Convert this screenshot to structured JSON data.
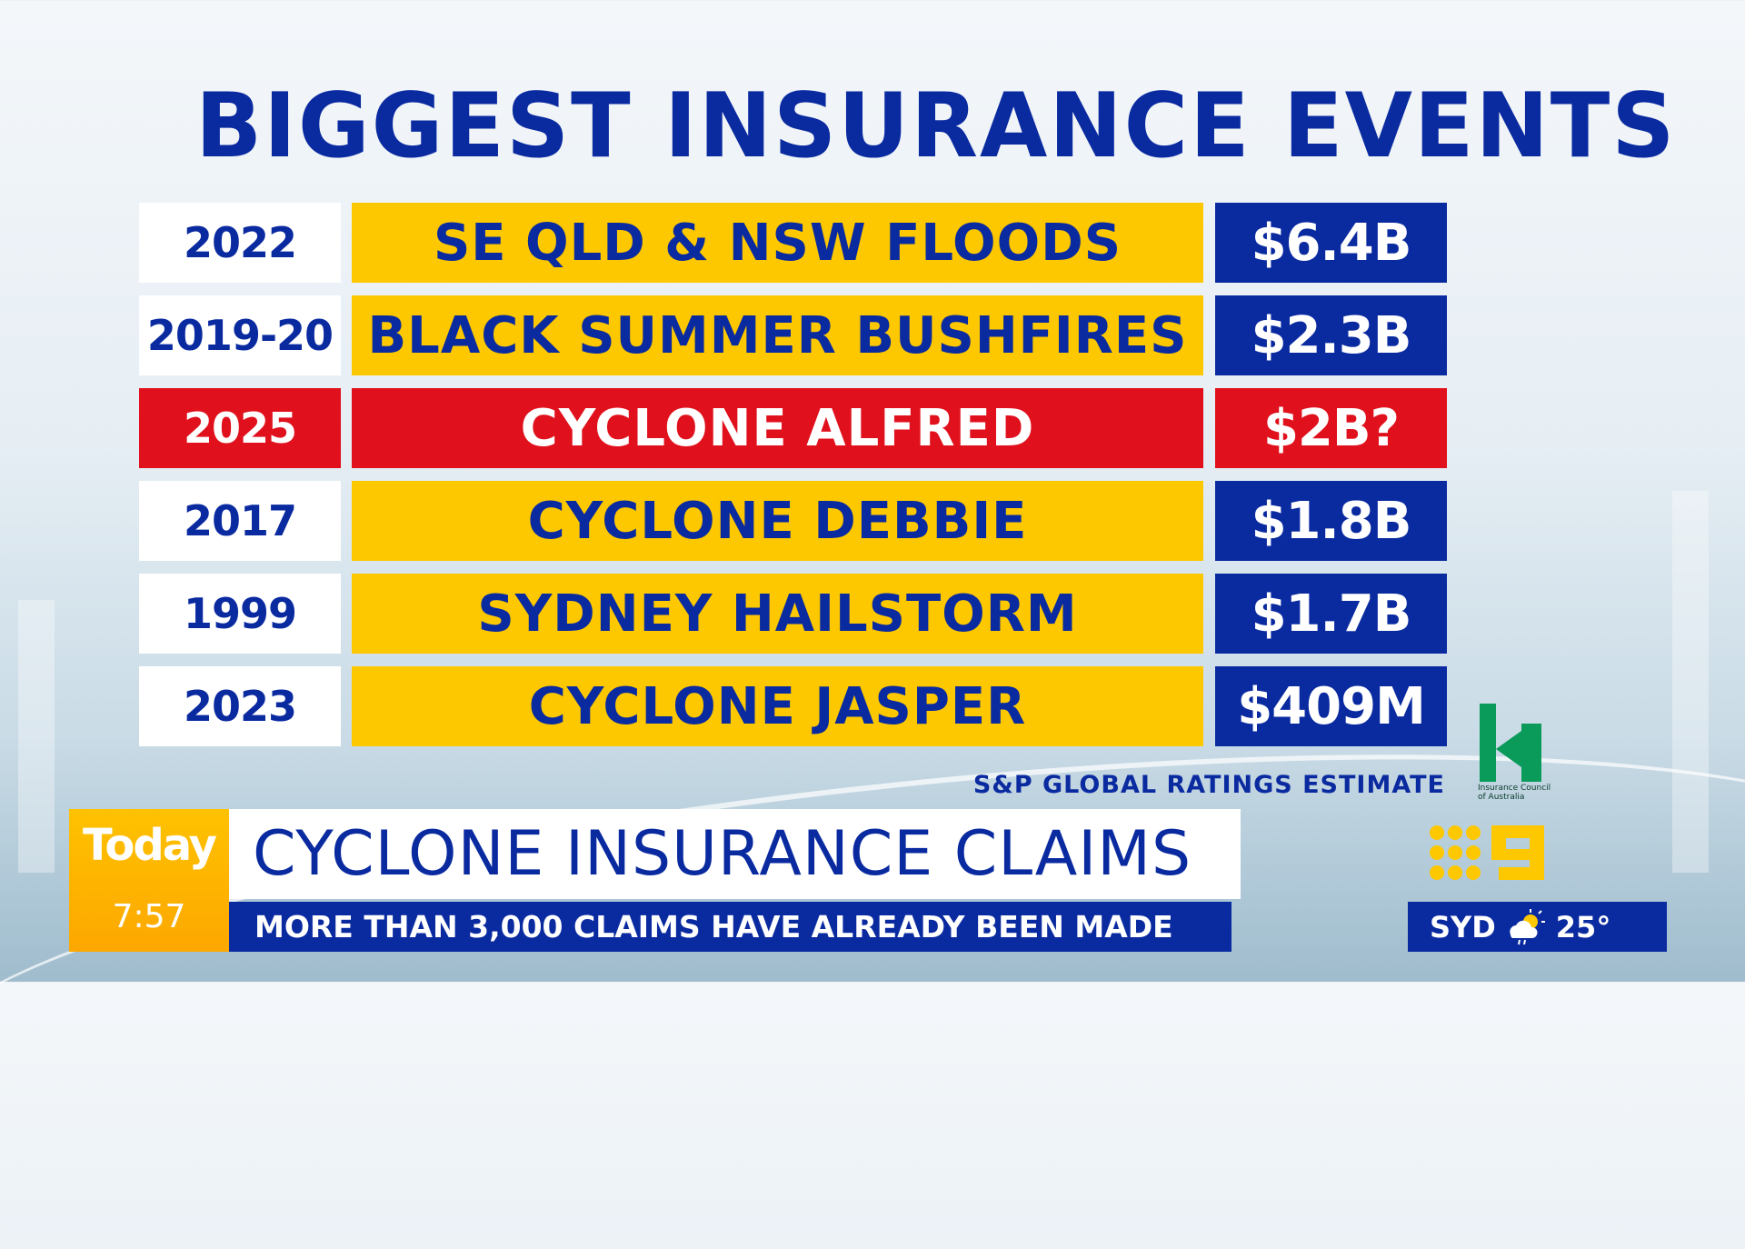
{
  "title": "BIGGEST INSURANCE EVENTS",
  "rows": [
    {
      "year": "2022",
      "event": "SE QLD & NSW FLOODS",
      "value": "$6.4B",
      "highlight": false
    },
    {
      "year": "2019-20",
      "event": "BLACK SUMMER BUSHFIRES",
      "value": "$2.3B",
      "highlight": false
    },
    {
      "year": "2025",
      "event": "CYCLONE ALFRED",
      "value": "$2B?",
      "highlight": true
    },
    {
      "year": "2017",
      "event": "CYCLONE DEBBIE",
      "value": "$1.8B",
      "highlight": false
    },
    {
      "year": "1999",
      "event": "SYDNEY HAILSTORM",
      "value": "$1.7B",
      "highlight": false
    },
    {
      "year": "2023",
      "event": "CYCLONE JASPER",
      "value": "$409M",
      "highlight": false
    }
  ],
  "source": "S&P GLOBAL RATINGS ESTIMATE",
  "ica_logo": {
    "text": "Insurance Council of Australia",
    "color": "#0a9a5a"
  },
  "lower_third": {
    "show": "Today",
    "time": "7:57",
    "headline": "CYCLONE INSURANCE CLAIMS",
    "subheadline": "MORE THAN 3,000 CLAIMS HAVE ALREADY BEEN MADE"
  },
  "weather": {
    "city": "SYD",
    "icon": "partly-cloudy-rain-icon",
    "temp": "25°"
  },
  "colors": {
    "blue": "#0a2aa0",
    "yellow": "#fdc800",
    "red": "#e0101c"
  }
}
